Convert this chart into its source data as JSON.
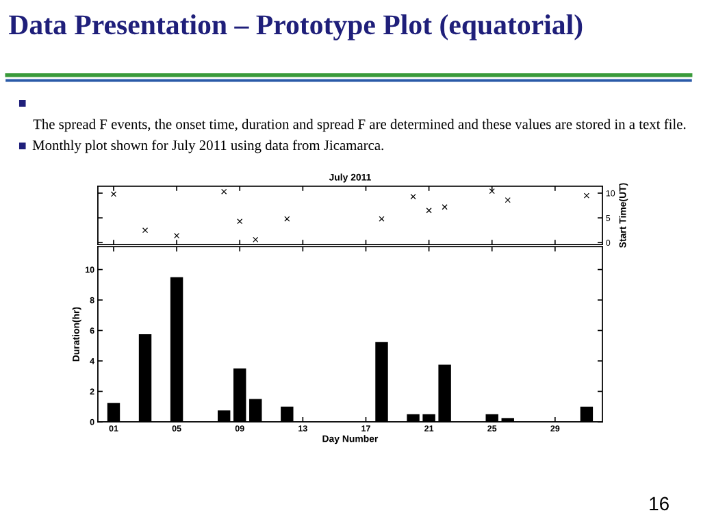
{
  "chart_data": [
    {
      "type": "scatter",
      "title": "July 2011",
      "ylabel": "Start Time(UT)",
      "marker": "cross",
      "color": "#000000",
      "tick_labels": "y",
      "annotations": [
        "Data Presentation – Prototype Plot (equatorial)",
        "The spread F events, the onset time, duration and spread F are determined and these values are stored in a text file.",
        "Monthly plot shown for July 2011 using data from Jicamarca.",
        "16"
      ],
      "x": [
        1,
        3,
        5,
        8,
        9,
        10,
        12,
        18,
        20,
        21,
        22,
        25,
        26,
        31
      ],
      "values": [
        9.8,
        2.5,
        1.4,
        10.3,
        4.3,
        0.6,
        4.8,
        4.8,
        9.3,
        6.5,
        7.2,
        10.4,
        8.6,
        9.5
      ],
      "xlim": [
        0,
        32
      ],
      "xticks": [
        {
          "value": 1,
          "label": null
        },
        {
          "value": 5,
          "label": null
        },
        {
          "value": 9,
          "label": null
        },
        {
          "value": 13,
          "label": null
        },
        {
          "value": 17,
          "label": null
        },
        {
          "value": 21,
          "label": null
        },
        {
          "value": 25,
          "label": null
        },
        {
          "value": 29,
          "label": null
        }
      ],
      "ylim": [
        -0.4,
        11.4
      ],
      "yticks": [
        0,
        5,
        10
      ]
    },
    {
      "type": "bar",
      "xlabel": "Day Number",
      "ylabel": "Duration(hr)",
      "color": "#000000",
      "x": [
        1,
        3,
        5,
        8,
        9,
        10,
        12,
        18,
        20,
        21,
        22,
        25,
        26,
        31
      ],
      "values": [
        1.25,
        5.75,
        9.5,
        0.75,
        3.5,
        1.5,
        1.0,
        5.25,
        0.5,
        0.5,
        3.75,
        0.5,
        0.25,
        1.0
      ],
      "xlim": [
        0,
        32
      ],
      "xticks": [
        {
          "value": 1,
          "label": "01"
        },
        {
          "value": 5,
          "label": "05"
        },
        {
          "value": 9,
          "label": "09"
        },
        {
          "value": 13,
          "label": "13"
        },
        {
          "value": 17,
          "label": "17"
        },
        {
          "value": 21,
          "label": "21"
        },
        {
          "value": 25,
          "label": "25"
        },
        {
          "value": 29,
          "label": "29"
        }
      ],
      "ylim": [
        0,
        11.5
      ],
      "yticks": [
        0,
        2,
        4,
        6,
        8,
        10
      ]
    }
  ]
}
